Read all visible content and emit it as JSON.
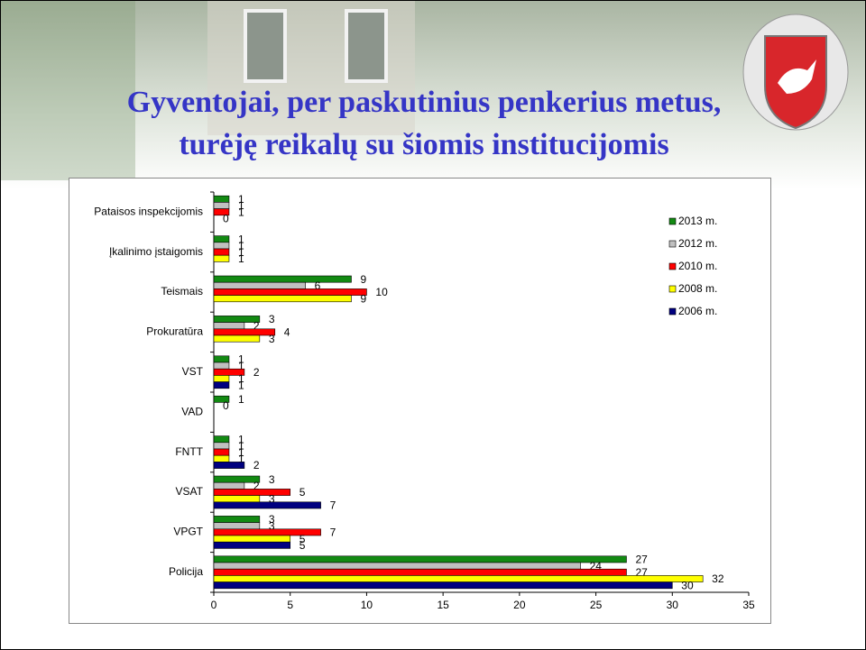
{
  "slide": {
    "title_lines": [
      "Gyventojai, per paskutinius penkerius metus,",
      "turėję reikalų su šiomis institucijomis"
    ]
  },
  "chart_data": {
    "type": "hbar",
    "categories": [
      "Pataisos inspekcijomis",
      "Įkalinimo įstaigomis",
      "Teismais",
      "Prokuratūra",
      "VST",
      "VAD",
      "FNTT",
      "VSAT",
      "VPGT",
      "Policija"
    ],
    "series": [
      {
        "name": "2013 m.",
        "color": "#128a12",
        "values": [
          1,
          1,
          9,
          3,
          1,
          1,
          1,
          3,
          3,
          27
        ]
      },
      {
        "name": "2012 m.",
        "color": "#c0c0c0",
        "values": [
          1,
          1,
          6,
          2,
          1,
          0,
          1,
          2,
          3,
          24
        ]
      },
      {
        "name": "2010 m.",
        "color": "#ff0000",
        "values": [
          1,
          1,
          10,
          4,
          2,
          null,
          1,
          5,
          7,
          27
        ]
      },
      {
        "name": "2008 m.",
        "color": "#ffff00",
        "values": [
          0,
          1,
          9,
          3,
          1,
          null,
          1,
          3,
          5,
          32
        ]
      },
      {
        "name": "2006 m.",
        "color": "#000080",
        "values": [
          null,
          null,
          null,
          null,
          1,
          null,
          2,
          7,
          5,
          30
        ]
      }
    ],
    "xlim": [
      0,
      35
    ],
    "xticks": [
      0,
      5,
      10,
      15,
      20,
      25,
      30,
      35
    ]
  }
}
